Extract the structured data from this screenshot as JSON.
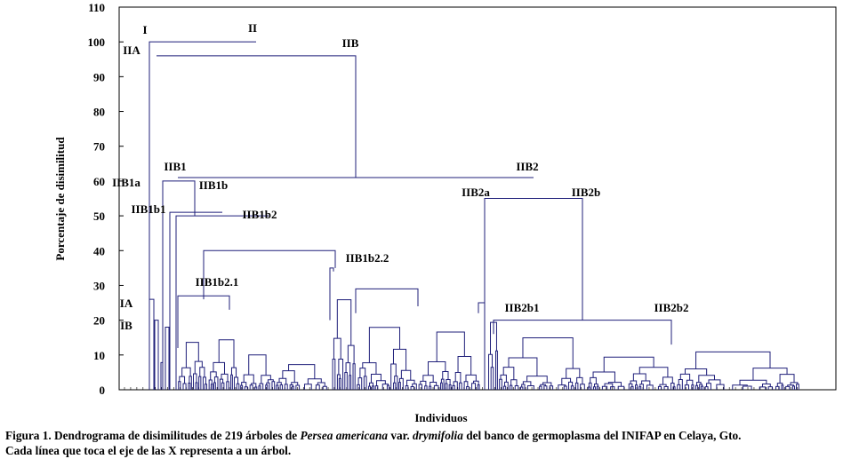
{
  "chart_data": {
    "type": "dendrogram",
    "ylabel": "Porcentaje de disimilitud",
    "xlabel": "Individuos",
    "ylim": [
      0,
      110
    ],
    "yticks": [
      0,
      10,
      20,
      30,
      40,
      50,
      60,
      70,
      80,
      90,
      100,
      110
    ],
    "n_leaves": 219,
    "grid": false,
    "line_color": "#1f1f7a",
    "clusters": [
      {
        "label": "I",
        "height": 100
      },
      {
        "label": "II",
        "height": 100
      },
      {
        "label": "IIA",
        "height": 100
      },
      {
        "label": "IIB",
        "height": 96
      },
      {
        "label": "IIB1",
        "height": 61
      },
      {
        "label": "IIB1a",
        "height": 60
      },
      {
        "label": "IIB1b",
        "height": 60
      },
      {
        "label": "IIB1b1",
        "height": 51
      },
      {
        "label": "IIB1b2",
        "height": 50
      },
      {
        "label": "IIB1b2.1",
        "height": 40
      },
      {
        "label": "IIB1b2.2",
        "height": 40
      },
      {
        "label": "IIB2",
        "height": 61
      },
      {
        "label": "IIB2a",
        "height": 55
      },
      {
        "label": "IIB2b",
        "height": 55
      },
      {
        "label": "IIB2b1",
        "height": 20
      },
      {
        "label": "IIB2b2",
        "height": 20
      },
      {
        "label": "IA",
        "height": 26
      },
      {
        "label": "IB",
        "height": 20
      }
    ]
  },
  "caption": {
    "line1_prefix": "Figura 1. Dendrograma de disimilitudes de 219 árboles de ",
    "line1_species": "Persea americana",
    "line1_var": " var. ",
    "line1_variety": "drymifolia",
    "line1_suffix": " del banco de germoplasma del INIFAP en Celaya, Gto.",
    "line2": "Cada línea que toca el eje de las X representa a un árbol."
  }
}
